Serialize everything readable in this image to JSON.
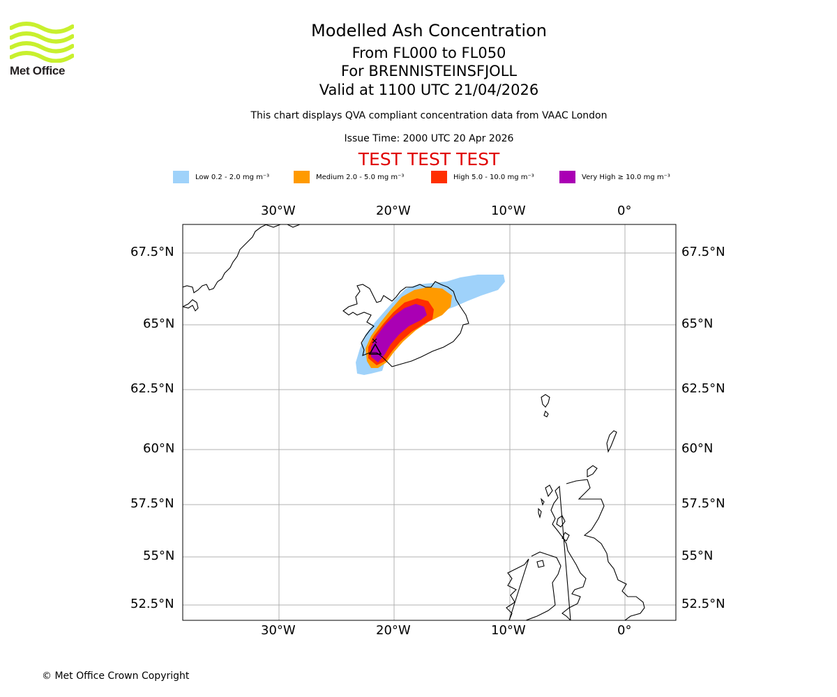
{
  "logo": {
    "text": "Met Office",
    "color": "#c8f02e"
  },
  "header": {
    "title": "Modelled Ash Concentration",
    "level_range": "From FL000 to FL050",
    "volcano": "For BRENNISTEINSFJOLL",
    "valid": "Valid at 1100 UTC 21/04/2026",
    "note": "This chart displays QVA compliant concentration data from VAAC London",
    "issue_time": "Issue Time: 2000 UTC 20 Apr 2026",
    "test_banner": "TEST TEST TEST",
    "test_color": "#e00000"
  },
  "legend": [
    {
      "label": "Low 0.2 - 2.0 mg m⁻³",
      "color": "#9fd2fa"
    },
    {
      "label": "Medium 2.0 - 5.0 mg m⁻³",
      "color": "#ff9a00"
    },
    {
      "label": "High 5.0 - 10.0 mg m⁻³",
      "color": "#ff2f00"
    },
    {
      "label": "Very High  ≥  10.0 mg m⁻³",
      "color": "#aa00b4"
    }
  ],
  "map": {
    "longitude_ticks": [
      "30°W",
      "20°W",
      "10°W",
      "0°"
    ],
    "latitude_ticks": [
      "67.5°N",
      "65°N",
      "62.5°N",
      "60°N",
      "57.5°N",
      "55°N",
      "52.5°N"
    ],
    "volcano_symbol": "triangle"
  },
  "footer": {
    "copyright": "© Met Office Crown Copyright"
  }
}
